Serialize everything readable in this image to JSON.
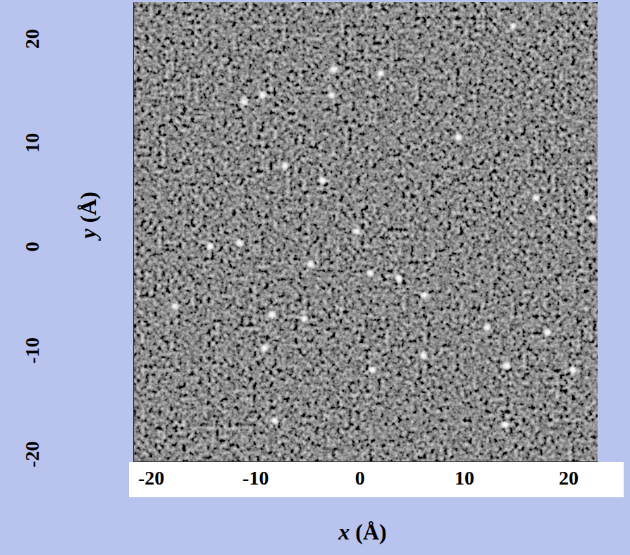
{
  "chart_data": {
    "type": "scatter",
    "x_label": "x (Å)",
    "y_label": "y (Å)",
    "x": [
      14.7,
      -2.5,
      -2.7,
      -11.1,
      9.5,
      -7.1,
      -3.5,
      -14.3,
      -11.5,
      -0.3,
      -4.7,
      1.0,
      3.7,
      6.2,
      -8.4,
      -5.3,
      12.2,
      18.0,
      -9.1,
      1.2,
      14.1,
      20.4,
      -8.1,
      13.9,
      22.3,
      -9.3,
      2.0,
      16.9,
      -17.7,
      6.1
    ],
    "y": [
      21.2,
      17.0,
      14.6,
      13.9,
      10.5,
      7.7,
      6.3,
      0.0,
      0.3,
      1.4,
      -1.7,
      -2.6,
      -3.1,
      -4.7,
      -6.6,
      -7.0,
      -7.8,
      -8.3,
      -9.8,
      -11.9,
      -11.5,
      -11.9,
      -16.8,
      -17.2,
      2.7,
      14.6,
      16.6,
      4.7,
      -5.8,
      -10.5
    ],
    "xlim": [
      -21.7,
      22.8
    ],
    "ylim": [
      -20.7,
      23.5
    ],
    "xticks": [
      -20,
      -10,
      0,
      10,
      20
    ],
    "yticks": [
      -20,
      -10,
      0,
      10,
      20
    ],
    "color": "#ffffff",
    "marker": "circle",
    "grid": false
  }
}
